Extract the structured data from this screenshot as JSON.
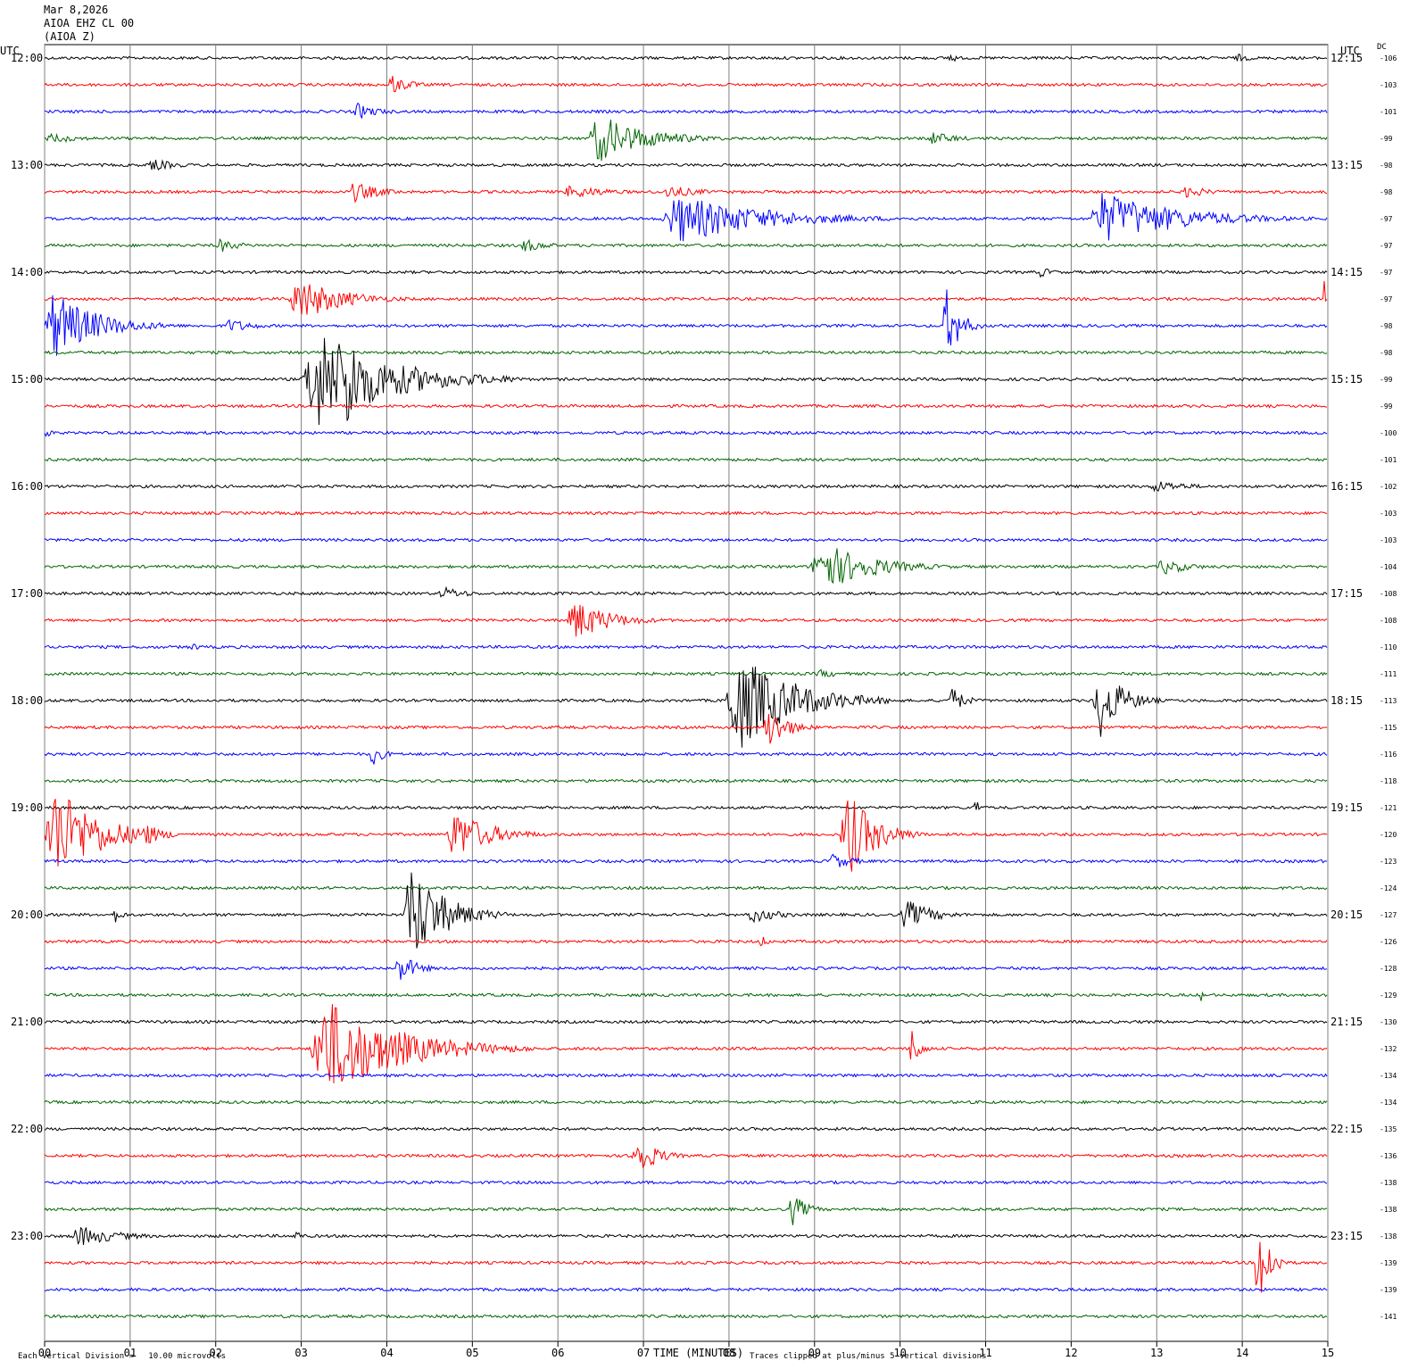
{
  "header": {
    "date": "Mar 8,2026",
    "station": "AIOA EHZ CL 00",
    "component": "(AIOA Z)"
  },
  "left_axis": {
    "title": "UTC"
  },
  "right_axis": {
    "title": "UTC",
    "dc_title": "DC"
  },
  "bottom": {
    "xlabel": "TIME (MINUTES)",
    "scale_note": "Each Vertical Division =   10.00 microvolts",
    "clip_note": "Traces clipped at plus/minus 5 vertical divisions"
  },
  "colors": {
    "trace_cycle": [
      "#000000",
      "#ff0000",
      "#0000ff",
      "#006400"
    ],
    "grid": "#808080"
  },
  "chart_data": {
    "type": "line",
    "title": "",
    "xlabel": "TIME (MINUTES)",
    "ylabel": "",
    "xlim": [
      0,
      15
    ],
    "x_ticks": [
      "00",
      "01",
      "02",
      "03",
      "04",
      "05",
      "06",
      "07",
      "08",
      "09",
      "10",
      "11",
      "12",
      "13",
      "14",
      "15"
    ],
    "grid": true,
    "rows_per_hour": 4,
    "hour_labels_left": [
      "12:00",
      "13:00",
      "14:00",
      "15:00",
      "16:00",
      "17:00",
      "18:00",
      "19:00",
      "20:00",
      "21:00",
      "22:00",
      "23:00"
    ],
    "hour_labels_right": [
      "12:15",
      "13:15",
      "14:15",
      "15:15",
      "16:15",
      "17:15",
      "18:15",
      "19:15",
      "20:15",
      "21:15",
      "22:15",
      "23:15"
    ],
    "dc_offsets": [
      -106,
      -103,
      -101,
      -99,
      -98,
      -98,
      -97,
      -97,
      -97,
      -97,
      -98,
      -98,
      -99,
      -99,
      -100,
      -101,
      -102,
      -103,
      -103,
      -104,
      -108,
      -108,
      -110,
      -111,
      -113,
      -115,
      -116,
      -118,
      -121,
      -120,
      -123,
      -124,
      -127,
      -126,
      -128,
      -129,
      -130,
      -132,
      -134,
      -134,
      -135,
      -136,
      -138,
      -138,
      -138,
      -139,
      -139,
      -141
    ],
    "events": [
      {
        "row": 0,
        "start": 10.55,
        "dur": 0.3,
        "amp": 8
      },
      {
        "row": 0,
        "start": 13.9,
        "dur": 0.6,
        "amp": 5
      },
      {
        "row": 1,
        "start": 4.0,
        "dur": 0.7,
        "amp": 12
      },
      {
        "row": 2,
        "start": 3.6,
        "dur": 0.8,
        "amp": 10
      },
      {
        "row": 3,
        "start": 0.0,
        "dur": 1.2,
        "amp": 6
      },
      {
        "row": 3,
        "start": 6.35,
        "dur": 1.8,
        "amp": 28
      },
      {
        "row": 3,
        "start": 10.3,
        "dur": 1.0,
        "amp": 8
      },
      {
        "row": 4,
        "start": 1.2,
        "dur": 1.0,
        "amp": 7
      },
      {
        "row": 5,
        "start": 3.55,
        "dur": 1.0,
        "amp": 12
      },
      {
        "row": 5,
        "start": 6.05,
        "dur": 1.5,
        "amp": 8
      },
      {
        "row": 5,
        "start": 7.2,
        "dur": 1.2,
        "amp": 8
      },
      {
        "row": 5,
        "start": 13.3,
        "dur": 0.8,
        "amp": 8
      },
      {
        "row": 6,
        "start": 7.2,
        "dur": 3.2,
        "amp": 28
      },
      {
        "row": 6,
        "start": 12.2,
        "dur": 2.8,
        "amp": 30
      },
      {
        "row": 7,
        "start": 2.0,
        "dur": 0.8,
        "amp": 8
      },
      {
        "row": 7,
        "start": 5.55,
        "dur": 0.9,
        "amp": 8
      },
      {
        "row": 8,
        "start": 11.6,
        "dur": 0.6,
        "amp": 6
      },
      {
        "row": 9,
        "start": 2.85,
        "dur": 1.6,
        "amp": 26
      },
      {
        "row": 9,
        "start": 14.95,
        "dur": 0.05,
        "amp": 40
      },
      {
        "row": 10,
        "start": 0.0,
        "dur": 1.6,
        "amp": 40
      },
      {
        "row": 10,
        "start": 2.1,
        "dur": 1.0,
        "amp": 8
      },
      {
        "row": 10,
        "start": 10.5,
        "dur": 0.5,
        "amp": 45
      },
      {
        "row": 12,
        "start": 3.0,
        "dur": 2.6,
        "amp": 60
      },
      {
        "row": 12,
        "start": 3.5,
        "dur": 0.5,
        "amp": 80
      },
      {
        "row": 14,
        "start": 0.0,
        "dur": 0.2,
        "amp": 8
      },
      {
        "row": 16,
        "start": 12.9,
        "dur": 1.4,
        "amp": 7
      },
      {
        "row": 19,
        "start": 8.95,
        "dur": 1.8,
        "amp": 30
      },
      {
        "row": 19,
        "start": 13.0,
        "dur": 1.0,
        "amp": 10
      },
      {
        "row": 20,
        "start": 4.6,
        "dur": 0.9,
        "amp": 8
      },
      {
        "row": 21,
        "start": 6.1,
        "dur": 1.3,
        "amp": 25
      },
      {
        "row": 22,
        "start": 1.7,
        "dur": 0.3,
        "amp": 6
      },
      {
        "row": 23,
        "start": 9.0,
        "dur": 1.0,
        "amp": 5
      },
      {
        "row": 24,
        "start": 7.95,
        "dur": 2.0,
        "amp": 60
      },
      {
        "row": 24,
        "start": 10.55,
        "dur": 0.5,
        "amp": 18
      },
      {
        "row": 24,
        "start": 12.25,
        "dur": 0.8,
        "amp": 50
      },
      {
        "row": 25,
        "start": 8.4,
        "dur": 0.7,
        "amp": 28
      },
      {
        "row": 26,
        "start": 3.8,
        "dur": 0.4,
        "amp": 15
      },
      {
        "row": 28,
        "start": 10.85,
        "dur": 0.2,
        "amp": 15
      },
      {
        "row": 29,
        "start": 0.0,
        "dur": 1.6,
        "amp": 60
      },
      {
        "row": 29,
        "start": 1.1,
        "dur": 0.6,
        "amp": 18
      },
      {
        "row": 29,
        "start": 4.7,
        "dur": 1.3,
        "amp": 30
      },
      {
        "row": 29,
        "start": 9.3,
        "dur": 1.0,
        "amp": 55
      },
      {
        "row": 30,
        "start": 9.15,
        "dur": 0.8,
        "amp": 10
      },
      {
        "row": 32,
        "start": 0.8,
        "dur": 0.3,
        "amp": 10
      },
      {
        "row": 32,
        "start": 4.2,
        "dur": 1.2,
        "amp": 60
      },
      {
        "row": 32,
        "start": 8.2,
        "dur": 1.0,
        "amp": 10
      },
      {
        "row": 32,
        "start": 10.0,
        "dur": 1.0,
        "amp": 18
      },
      {
        "row": 33,
        "start": 8.35,
        "dur": 0.3,
        "amp": 8
      },
      {
        "row": 34,
        "start": 4.1,
        "dur": 0.6,
        "amp": 20
      },
      {
        "row": 35,
        "start": 13.5,
        "dur": 0.1,
        "amp": 10
      },
      {
        "row": 37,
        "start": 3.1,
        "dur": 2.6,
        "amp": 60
      },
      {
        "row": 37,
        "start": 10.1,
        "dur": 0.3,
        "amp": 30
      },
      {
        "row": 41,
        "start": 6.85,
        "dur": 0.7,
        "amp": 28
      },
      {
        "row": 43,
        "start": 8.7,
        "dur": 0.5,
        "amp": 20
      },
      {
        "row": 44,
        "start": 0.3,
        "dur": 1.5,
        "amp": 12
      },
      {
        "row": 44,
        "start": 2.9,
        "dur": 0.3,
        "amp": 8
      },
      {
        "row": 45,
        "start": 14.15,
        "dur": 0.4,
        "amp": 70
      }
    ]
  }
}
